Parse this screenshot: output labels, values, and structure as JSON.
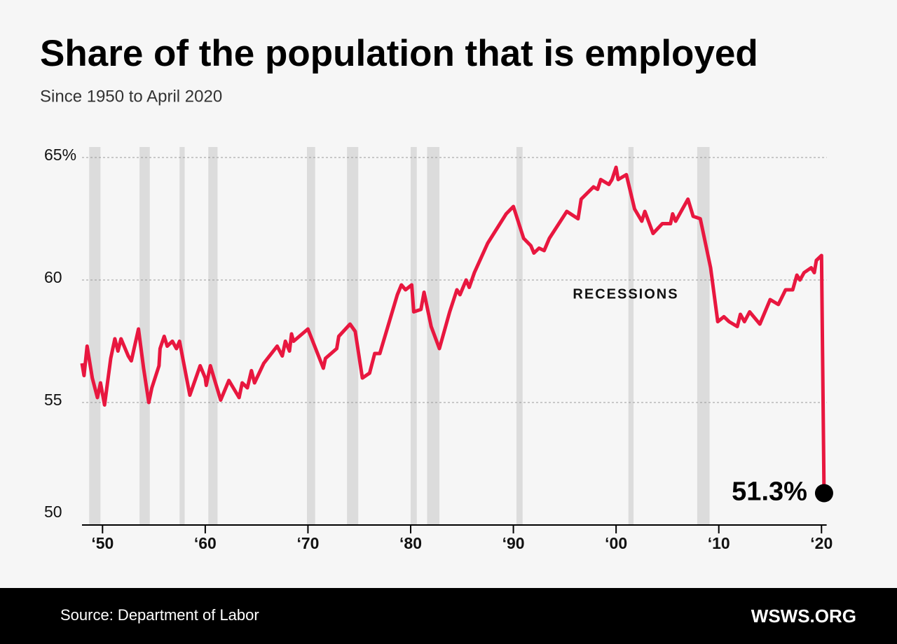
{
  "chart_data": {
    "type": "line",
    "title": "Share of the population that is employed",
    "subtitle": "Since 1950 to April 2020",
    "source": "Source: Department of Labor",
    "brand": "WSWS.ORG",
    "annotation": "RECESSIONS",
    "color": "#e8173f",
    "band_color": "#dcdcdc",
    "grid": true,
    "xlim": [
      1948,
      2020.5
    ],
    "ylim": [
      50,
      65
    ],
    "xticks": [
      {
        "value": 1950,
        "label": "‘50"
      },
      {
        "value": 1960,
        "label": "‘60"
      },
      {
        "value": 1970,
        "label": "‘70"
      },
      {
        "value": 1980,
        "label": "‘80"
      },
      {
        "value": 1990,
        "label": "‘90"
      },
      {
        "value": 2000,
        "label": "‘00"
      },
      {
        "value": 2010,
        "label": "‘10"
      },
      {
        "value": 2020,
        "label": "‘20"
      }
    ],
    "yticks": [
      50,
      55,
      60,
      {
        "value": 65,
        "label": "65%"
      }
    ],
    "recessions": [
      [
        1948.7,
        1949.8
      ],
      [
        1953.6,
        1954.6
      ],
      [
        1957.5,
        1958.0
      ],
      [
        1960.3,
        1961.2
      ],
      [
        1969.9,
        1970.7
      ],
      [
        1973.8,
        1974.9
      ],
      [
        1980.0,
        1980.6
      ],
      [
        1981.6,
        1982.8
      ],
      [
        1990.3,
        1990.9
      ],
      [
        2001.2,
        2001.7
      ],
      [
        2007.9,
        2009.1
      ]
    ],
    "x": [
      1948,
      1948.2,
      1948.5,
      1949,
      1949.5,
      1949.8,
      1950.2,
      1950.8,
      1951.2,
      1951.5,
      1951.8,
      1952.5,
      1952.8,
      1953.5,
      1954,
      1954.5,
      1954.8,
      1955.5,
      1955.6,
      1956,
      1956.3,
      1956.8,
      1957.2,
      1957.5,
      1958.5,
      1959.5,
      1960,
      1960.1,
      1960.5,
      1961,
      1961.5,
      1962.3,
      1963.3,
      1963.6,
      1964.1,
      1964.5,
      1964.8,
      1965.7,
      1967,
      1967.5,
      1967.8,
      1968.2,
      1968.4,
      1968.6,
      1970,
      1971.5,
      1971.7,
      1972.8,
      1973,
      1974.1,
      1974.6,
      1975.3,
      1976,
      1976.5,
      1977,
      1978.7,
      1979.1,
      1979.5,
      1980.1,
      1980.3,
      1981,
      1981.3,
      1982,
      1982.8,
      1983.8,
      1984.5,
      1984.8,
      1985.4,
      1985.7,
      1986.2,
      1987.5,
      1989.3,
      1990,
      1991,
      1991.7,
      1992,
      1992.5,
      1993,
      1993.5,
      1995.2,
      1996.3,
      1996.6,
      1997.8,
      1998.2,
      1998.5,
      1999.3,
      1999.6,
      2000,
      2000.2,
      2001,
      2001.8,
      2002.5,
      2002.8,
      2003.6,
      2004.5,
      2005.3,
      2005.5,
      2005.8,
      2007,
      2007.5,
      2008.2,
      2009.2,
      2009.9,
      2010.5,
      2011,
      2011.8,
      2012.1,
      2012.5,
      2013,
      2014,
      2015,
      2015.8,
      2016.5,
      2017.2,
      2017.6,
      2017.9,
      2018.3,
      2019,
      2019.3,
      2019.5,
      2020,
      2020.25
    ],
    "values": [
      56.6,
      56.1,
      57.3,
      56.0,
      55.2,
      55.8,
      54.9,
      56.8,
      57.6,
      57.1,
      57.6,
      56.9,
      56.7,
      58.0,
      56.4,
      55.0,
      55.6,
      56.5,
      57.2,
      57.7,
      57.3,
      57.5,
      57.2,
      57.5,
      55.3,
      56.5,
      56.0,
      55.7,
      56.5,
      55.8,
      55.1,
      55.9,
      55.2,
      55.8,
      55.6,
      56.3,
      55.8,
      56.6,
      57.3,
      56.9,
      57.5,
      57.1,
      57.8,
      57.5,
      58.0,
      56.4,
      56.8,
      57.2,
      57.7,
      58.2,
      57.9,
      56.0,
      56.2,
      57.0,
      57.0,
      59.4,
      59.8,
      59.6,
      59.8,
      58.7,
      58.8,
      59.5,
      58.1,
      57.2,
      58.7,
      59.6,
      59.4,
      60.0,
      59.7,
      60.3,
      61.5,
      62.7,
      63.0,
      61.7,
      61.4,
      61.1,
      61.3,
      61.2,
      61.7,
      62.8,
      62.5,
      63.3,
      63.8,
      63.7,
      64.1,
      63.9,
      64.1,
      64.6,
      64.1,
      64.3,
      62.9,
      62.4,
      62.8,
      61.9,
      62.3,
      62.3,
      62.7,
      62.4,
      63.3,
      62.6,
      62.5,
      60.5,
      58.3,
      58.5,
      58.3,
      58.1,
      58.6,
      58.3,
      58.7,
      58.2,
      59.2,
      59.0,
      59.6,
      59.6,
      60.2,
      60.0,
      60.3,
      60.5,
      60.3,
      60.8,
      61.0,
      51.3
    ],
    "value_labels": [
      null,
      null,
      null,
      null,
      null,
      null,
      null,
      null,
      null,
      null,
      null,
      null,
      null,
      null,
      null,
      null,
      null,
      null,
      null,
      null,
      null,
      null,
      null,
      null,
      null,
      null,
      null,
      null,
      null,
      null,
      null,
      null,
      null,
      null,
      null,
      null,
      null,
      null,
      null,
      null,
      null,
      null,
      null,
      null,
      null,
      null,
      null,
      null,
      null,
      null,
      null,
      null,
      null,
      null,
      null,
      null,
      null,
      null,
      null,
      null,
      null,
      null,
      null,
      null,
      null,
      null,
      null,
      null,
      null,
      null,
      null,
      null,
      null,
      null,
      null,
      null,
      null,
      null,
      null,
      null,
      null,
      null,
      null,
      null,
      null,
      null,
      null,
      null,
      null,
      null,
      null,
      null,
      null,
      null,
      null,
      null,
      null,
      null,
      null,
      null,
      null,
      null,
      null,
      null,
      null,
      null,
      null,
      null,
      null,
      null,
      null,
      null,
      null,
      null,
      null,
      null,
      null,
      null,
      null,
      null,
      null,
      "51.3%"
    ]
  }
}
